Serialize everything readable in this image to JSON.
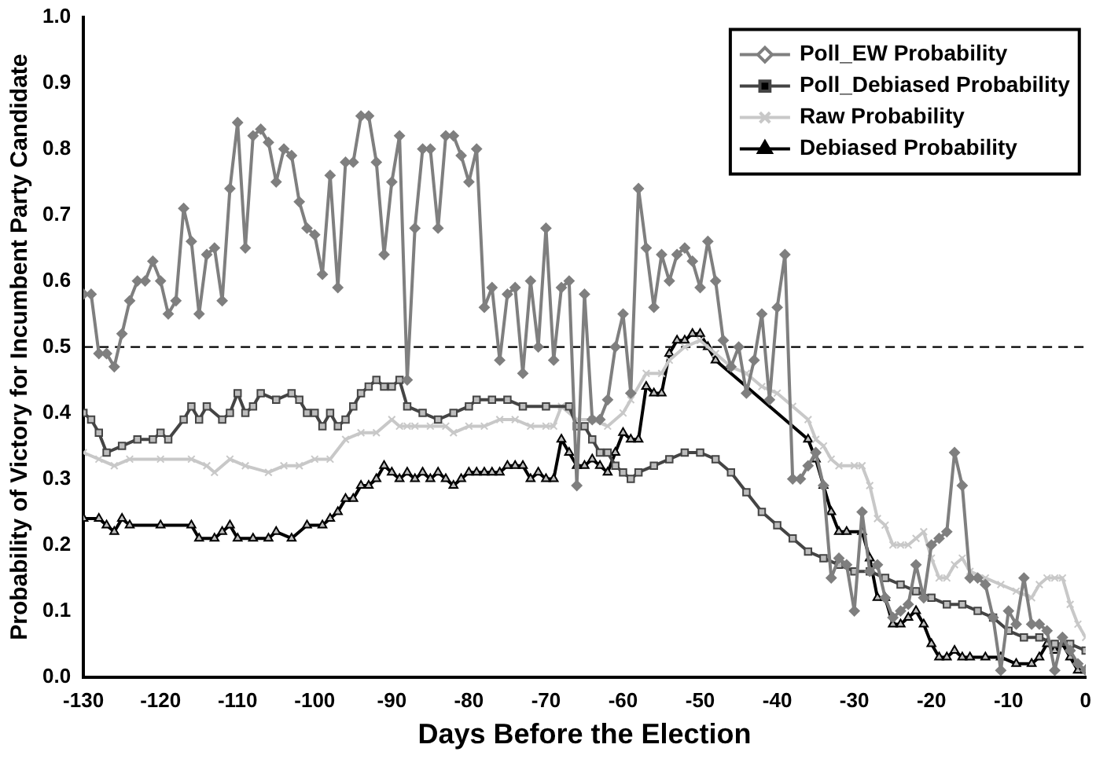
{
  "chart_data": {
    "type": "line",
    "xlabel": "Days Before the Election",
    "ylabel": "Probability of Victory for Incumbent Party Candidate",
    "x": [
      -130,
      -129,
      -128,
      -127,
      -126,
      -125,
      -124,
      -123,
      -122,
      -121,
      -120,
      -119,
      -118,
      -117,
      -116,
      -115,
      -114,
      -113,
      -112,
      -111,
      -110,
      -109,
      -108,
      -107,
      -106,
      -105,
      -104,
      -103,
      -102,
      -101,
      -100,
      -99,
      -98,
      -97,
      -96,
      -95,
      -94,
      -93,
      -92,
      -91,
      -90,
      -89,
      -88,
      -87,
      -86,
      -85,
      -84,
      -83,
      -82,
      -81,
      -80,
      -79,
      -78,
      -77,
      -76,
      -75,
      -74,
      -73,
      -72,
      -71,
      -70,
      -69,
      -68,
      -67,
      -66,
      -65,
      -64,
      -63,
      -62,
      -61,
      -60,
      -59,
      -58,
      -57,
      -56,
      -55,
      -54,
      -53,
      -52,
      -51,
      -50,
      -49,
      -48,
      -47,
      -46,
      -45,
      -44,
      -43,
      -42,
      -41,
      -40,
      -39,
      -38,
      -37,
      -36,
      -35,
      -34,
      -33,
      -32,
      -31,
      -30,
      -29,
      -28,
      -27,
      -26,
      -25,
      -24,
      -23,
      -22,
      -21,
      -20,
      -19,
      -18,
      -17,
      -16,
      -15,
      -14,
      -13,
      -12,
      -11,
      -10,
      -9,
      -8,
      -7,
      -6,
      -5,
      -4,
      -3,
      -2,
      -1,
      0
    ],
    "series": [
      {
        "name": "Poll_EW Probability",
        "color": "#7f7f7f",
        "marker": "diamond",
        "values": [
          0.58,
          0.58,
          0.49,
          0.49,
          0.47,
          0.52,
          0.57,
          0.6,
          0.6,
          0.63,
          0.6,
          0.55,
          0.57,
          0.71,
          0.66,
          0.55,
          0.64,
          0.65,
          0.57,
          0.74,
          0.84,
          0.65,
          0.82,
          0.83,
          0.81,
          0.75,
          0.8,
          0.79,
          0.72,
          0.68,
          0.67,
          0.61,
          0.76,
          0.59,
          0.78,
          0.78,
          0.85,
          0.85,
          0.78,
          0.64,
          0.75,
          0.82,
          0.45,
          0.68,
          0.8,
          0.8,
          0.68,
          0.82,
          0.82,
          0.79,
          0.75,
          0.8,
          0.56,
          0.59,
          0.48,
          0.58,
          0.59,
          0.46,
          0.6,
          0.5,
          0.68,
          0.48,
          0.59,
          0.6,
          0.29,
          0.58,
          0.39,
          0.39,
          0.42,
          0.5,
          0.55,
          0.43,
          0.74,
          0.65,
          0.56,
          0.64,
          0.6,
          0.64,
          0.65,
          0.63,
          0.59,
          0.66,
          0.6,
          0.51,
          0.47,
          0.5,
          0.43,
          0.48,
          0.55,
          0.42,
          0.56,
          0.64,
          0.3,
          0.3,
          0.32,
          0.34,
          0.29,
          0.15,
          0.18,
          0.17,
          0.1,
          0.25,
          0.16,
          0.17,
          0.12,
          0.09,
          0.1,
          0.11,
          0.17,
          0.12,
          0.2,
          0.21,
          0.22,
          0.34,
          0.29,
          0.15,
          0.15,
          0.14,
          0.09,
          0.01,
          0.1,
          0.08,
          0.15,
          0.08,
          0.08,
          0.07,
          0.01,
          0.06,
          0.04,
          0.02,
          0.01
        ]
      },
      {
        "name": "Poll_Debiased Probability",
        "color": "#444444",
        "marker": "square",
        "x": [
          -130,
          -129,
          -128,
          -127,
          -125,
          -123,
          -121,
          -120,
          -119,
          -117,
          -116,
          -115,
          -114,
          -112,
          -111,
          -110,
          -109,
          -108,
          -107,
          -105,
          -103,
          -102,
          -101,
          -100,
          -99,
          -98,
          -97,
          -96,
          -95,
          -94,
          -93,
          -92,
          -91,
          -90,
          -89,
          -88,
          -86,
          -84,
          -82,
          -80,
          -79,
          -77,
          -75,
          -73,
          -70,
          -67,
          -66,
          -65,
          -64,
          -63,
          -62,
          -61,
          -60,
          -59,
          -58,
          -56,
          -54,
          -52,
          -50,
          -48,
          -46,
          -44,
          -42,
          -40,
          -38,
          -36,
          -34,
          -32,
          -30,
          -28,
          -26,
          -24,
          -22,
          -20,
          -18,
          -16,
          -14,
          -12,
          -10,
          -8,
          -6,
          -4,
          -2,
          0
        ],
        "values": [
          0.4,
          0.39,
          0.37,
          0.34,
          0.35,
          0.36,
          0.36,
          0.37,
          0.36,
          0.39,
          0.41,
          0.39,
          0.41,
          0.39,
          0.4,
          0.43,
          0.4,
          0.41,
          0.43,
          0.42,
          0.43,
          0.42,
          0.4,
          0.4,
          0.38,
          0.4,
          0.38,
          0.39,
          0.41,
          0.43,
          0.44,
          0.45,
          0.44,
          0.44,
          0.45,
          0.41,
          0.4,
          0.39,
          0.4,
          0.41,
          0.42,
          0.42,
          0.42,
          0.41,
          0.41,
          0.41,
          0.38,
          0.38,
          0.36,
          0.34,
          0.34,
          0.32,
          0.31,
          0.3,
          0.31,
          0.32,
          0.33,
          0.34,
          0.34,
          0.33,
          0.31,
          0.28,
          0.25,
          0.23,
          0.21,
          0.19,
          0.18,
          0.17,
          0.16,
          0.16,
          0.15,
          0.14,
          0.13,
          0.12,
          0.11,
          0.11,
          0.1,
          0.09,
          0.07,
          0.06,
          0.06,
          0.05,
          0.05,
          0.04
        ]
      },
      {
        "name": "Raw Probability",
        "color": "#c8c8c8",
        "marker": "cross",
        "x": [
          -130,
          -128,
          -126,
          -124,
          -120,
          -116,
          -114,
          -113,
          -111,
          -109,
          -106,
          -104,
          -102,
          -100,
          -98,
          -96,
          -94,
          -92,
          -90,
          -89,
          -88,
          -87,
          -85,
          -83,
          -82,
          -80,
          -78,
          -76,
          -74,
          -72,
          -70,
          -69,
          -68,
          -66,
          -64,
          -62,
          -60,
          -59,
          -57,
          -55,
          -54,
          -52,
          -50,
          -48,
          -46,
          -44,
          -42,
          -40,
          -38,
          -36,
          -35,
          -34,
          -33,
          -32,
          -30,
          -29,
          -28,
          -27,
          -26,
          -25,
          -24,
          -23,
          -22,
          -21,
          -20,
          -19,
          -18,
          -17,
          -16,
          -15,
          -13,
          -11,
          -9,
          -7,
          -6,
          -5,
          -4,
          -3,
          -2,
          -1,
          0
        ],
        "values": [
          0.34,
          0.33,
          0.32,
          0.33,
          0.33,
          0.33,
          0.32,
          0.31,
          0.33,
          0.32,
          0.31,
          0.32,
          0.32,
          0.33,
          0.33,
          0.36,
          0.37,
          0.37,
          0.39,
          0.38,
          0.38,
          0.38,
          0.38,
          0.38,
          0.37,
          0.38,
          0.38,
          0.39,
          0.39,
          0.38,
          0.38,
          0.38,
          0.41,
          0.39,
          0.39,
          0.38,
          0.4,
          0.42,
          0.46,
          0.46,
          0.48,
          0.5,
          0.51,
          0.49,
          0.47,
          0.46,
          0.44,
          0.43,
          0.41,
          0.39,
          0.36,
          0.35,
          0.33,
          0.32,
          0.32,
          0.32,
          0.29,
          0.24,
          0.23,
          0.2,
          0.2,
          0.2,
          0.21,
          0.22,
          0.18,
          0.15,
          0.15,
          0.17,
          0.18,
          0.16,
          0.15,
          0.14,
          0.13,
          0.12,
          0.14,
          0.15,
          0.15,
          0.15,
          0.11,
          0.08,
          0.06
        ]
      },
      {
        "name": "Debiased Probability",
        "color": "#000000",
        "marker": "triangle",
        "x": [
          -130,
          -128,
          -127,
          -126,
          -125,
          -124,
          -120,
          -116,
          -115,
          -113,
          -112,
          -111,
          -110,
          -108,
          -106,
          -105,
          -103,
          -101,
          -99,
          -98,
          -97,
          -96,
          -95,
          -94,
          -93,
          -92,
          -91,
          -90,
          -89,
          -88,
          -87,
          -86,
          -85,
          -84,
          -83,
          -82,
          -81,
          -80,
          -79,
          -78,
          -77,
          -76,
          -75,
          -74,
          -73,
          -72,
          -71,
          -70,
          -69,
          -68,
          -67,
          -66,
          -65,
          -64,
          -63,
          -62,
          -61,
          -60,
          -59,
          -58,
          -57,
          -56,
          -55,
          -54,
          -53,
          -52,
          -51,
          -50,
          -49,
          -48,
          -36,
          -35,
          -34,
          -33,
          -32,
          -31,
          -29,
          -28,
          -27,
          -26,
          -25,
          -24,
          -23,
          -22,
          -21,
          -20,
          -19,
          -18,
          -17,
          -16,
          -15,
          -13,
          -11,
          -9,
          -7,
          -6,
          -5,
          -4,
          -3,
          -2,
          -1,
          0
        ],
        "values": [
          0.24,
          0.24,
          0.23,
          0.22,
          0.24,
          0.23,
          0.23,
          0.23,
          0.21,
          0.21,
          0.22,
          0.23,
          0.21,
          0.21,
          0.21,
          0.22,
          0.21,
          0.23,
          0.23,
          0.24,
          0.25,
          0.27,
          0.27,
          0.29,
          0.29,
          0.3,
          0.32,
          0.31,
          0.3,
          0.31,
          0.3,
          0.31,
          0.3,
          0.31,
          0.3,
          0.29,
          0.3,
          0.31,
          0.31,
          0.31,
          0.31,
          0.31,
          0.32,
          0.32,
          0.32,
          0.3,
          0.31,
          0.3,
          0.3,
          0.36,
          0.34,
          0.32,
          0.32,
          0.33,
          0.32,
          0.31,
          0.34,
          0.37,
          0.36,
          0.36,
          0.44,
          0.43,
          0.43,
          0.49,
          0.51,
          0.51,
          0.52,
          0.52,
          0.5,
          0.48,
          0.36,
          0.33,
          0.29,
          0.25,
          0.22,
          0.22,
          0.22,
          0.18,
          0.12,
          0.12,
          0.08,
          0.08,
          0.09,
          0.1,
          0.08,
          0.05,
          0.03,
          0.03,
          0.04,
          0.03,
          0.03,
          0.03,
          0.03,
          0.02,
          0.02,
          0.03,
          0.05,
          0.04,
          0.05,
          0.03,
          0.01,
          0.01
        ]
      }
    ],
    "xlim": [
      -130,
      0
    ],
    "xticks": [
      -130,
      -120,
      -110,
      -100,
      -90,
      -80,
      -70,
      -60,
      -50,
      -40,
      -30,
      -20,
      -10,
      0
    ],
    "ylim": [
      0,
      1
    ],
    "yticks": [
      {
        "value": 0,
        "label": "0.0"
      },
      {
        "value": 0.1,
        "label": "0.1"
      },
      {
        "value": 0.2,
        "label": "0.2"
      },
      {
        "value": 0.3,
        "label": "0.3"
      },
      {
        "value": 0.4,
        "label": "0.4"
      },
      {
        "value": 0.5,
        "label": "0.5"
      },
      {
        "value": 0.6,
        "label": "0.6"
      },
      {
        "value": 0.7,
        "label": "0.7"
      },
      {
        "value": 0.8,
        "label": "0.8"
      },
      {
        "value": 0.9,
        "label": "0.9"
      },
      {
        "value": 1,
        "label": "1.0"
      }
    ],
    "ref_lines": [
      {
        "axis": "y",
        "value": 0.5,
        "color": "#000000",
        "line_style": "dashed"
      }
    ],
    "legend": "top right",
    "grid": false,
    "line_style": "solid"
  }
}
